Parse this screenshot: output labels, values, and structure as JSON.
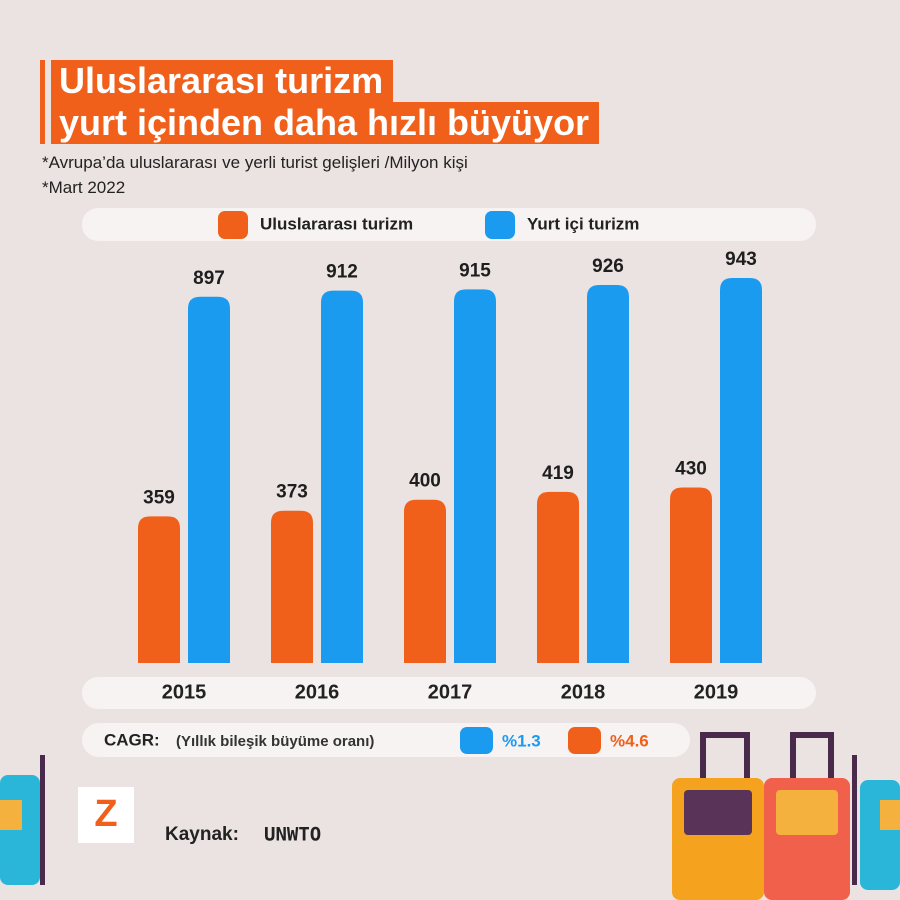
{
  "chart_data": {
    "type": "bar",
    "title": [
      "Uluslararası turizm",
      "yurt içinden daha hızlı büyüyor"
    ],
    "subtitle": "*Avrupa’da uluslararası ve yerli turist gelişleri /Milyon kişi",
    "note": "*Mart 2022",
    "categories": [
      "2015",
      "2016",
      "2017",
      "2018",
      "2019"
    ],
    "series": [
      {
        "name": "Uluslararası turizm",
        "color": "#f0601b",
        "values": [
          359,
          373,
          400,
          419,
          430
        ]
      },
      {
        "name": "Yurt içi turizm",
        "color": "#1a9bf0",
        "values": [
          897,
          912,
          915,
          926,
          943
        ]
      }
    ],
    "legend": "top"
  },
  "cagr": {
    "label": "CAGR:",
    "note": "(Yıllık bileşik büyüme oranı)",
    "items": [
      {
        "label": "%1.3",
        "color": "#1a9bf0"
      },
      {
        "label": "%4.6",
        "color": "#f0601b"
      }
    ]
  },
  "logo": "Z",
  "source": {
    "label": "Kaynak:",
    "value": "UNWTO"
  }
}
